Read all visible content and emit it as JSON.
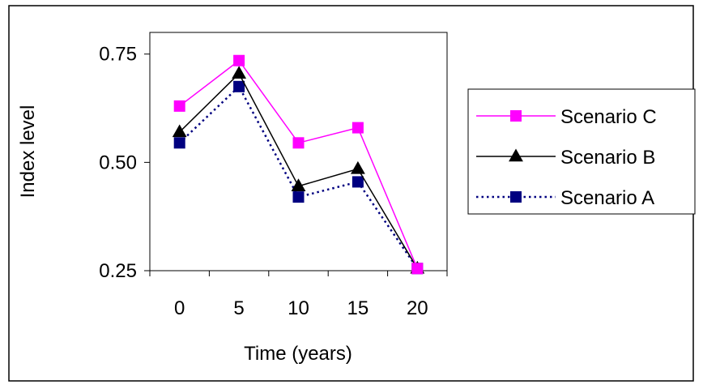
{
  "chart_data": {
    "type": "line",
    "title": "",
    "xlabel": "Time (years)",
    "ylabel": "Index level",
    "categories": [
      "0",
      "5",
      "10",
      "15",
      "20"
    ],
    "ylim": [
      0.25,
      0.8
    ],
    "yticks": [
      "0.25",
      "0.50",
      "0.75"
    ],
    "ytick_values": [
      0.25,
      0.5,
      0.75
    ],
    "grid": false,
    "legend_position": "right",
    "series": [
      {
        "name": "Scenario C",
        "values": [
          0.63,
          0.735,
          0.545,
          0.58,
          0.255
        ],
        "color": "#ff00ff",
        "marker": "square",
        "line_style": "solid"
      },
      {
        "name": "Scenario B",
        "values": [
          0.57,
          0.705,
          0.445,
          0.485,
          0.255
        ],
        "color": "#000000",
        "marker": "triangle",
        "line_style": "solid"
      },
      {
        "name": "Scenario A",
        "values": [
          0.545,
          0.675,
          0.42,
          0.455,
          0.255
        ],
        "color": "#000080",
        "marker": "square",
        "line_style": "dotted"
      }
    ]
  }
}
